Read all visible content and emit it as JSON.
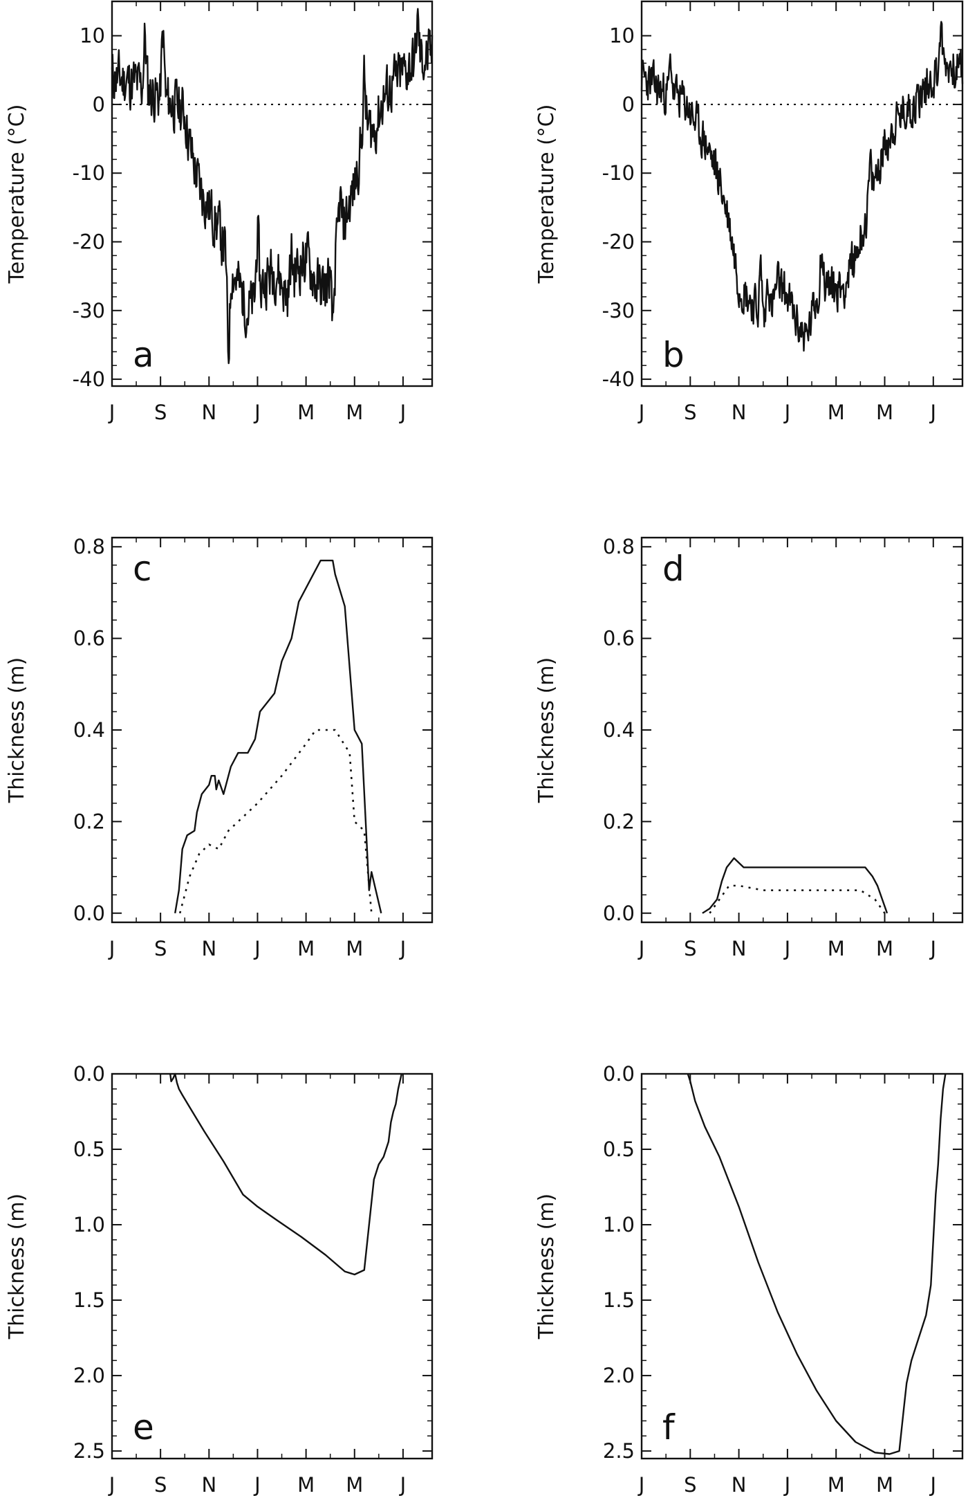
{
  "figure": {
    "panels": [
      "a",
      "b",
      "c",
      "d",
      "e",
      "f"
    ]
  },
  "chart_data": [
    {
      "id": "a",
      "panel_label": "a",
      "type": "line",
      "ylabel": "Temperature (°C)",
      "xlabel": "",
      "month_ticks": [
        "J",
        "S",
        "N",
        "J",
        "M",
        "M",
        "J"
      ],
      "ylim": [
        -41,
        15
      ],
      "y_ticks": [
        10,
        0,
        -10,
        -20,
        -30,
        -40
      ],
      "y_tick_labels": [
        "10",
        "0",
        "-10",
        "-20",
        "-30",
        "-40"
      ],
      "zero_line": true,
      "series": [
        {
          "style": "solid",
          "noise": 3.6,
          "seed": 11,
          "spikes": [
            [
              0.68,
              8
            ],
            [
              1.05,
              10
            ],
            [
              2.4,
              -14
            ],
            [
              3.0,
              10
            ],
            [
              3.7,
              4
            ],
            [
              4.55,
              -10
            ],
            [
              4.7,
              6
            ],
            [
              5.2,
              7
            ],
            [
              6.3,
              6
            ]
          ],
          "x": [
            0,
            0.5,
            1.0,
            1.3,
            1.5,
            1.6,
            1.8,
            2.0,
            2.2,
            2.4,
            2.6,
            2.8,
            3.0,
            3.2,
            3.4,
            3.6,
            3.8,
            4.0,
            4.2,
            4.4,
            4.6,
            4.8,
            5.0,
            5.2,
            5.4,
            5.6,
            5.8,
            6.2,
            6.6
          ],
          "y": [
            4,
            3,
            1,
            0,
            -1,
            -6,
            -12,
            -15,
            -18,
            -23,
            -26,
            -30,
            -28,
            -25,
            -24,
            -28,
            -24,
            -22,
            -26,
            -27,
            -22,
            -17,
            -12,
            -3,
            -4,
            1,
            3,
            6,
            7
          ]
        }
      ]
    },
    {
      "id": "b",
      "panel_label": "b",
      "type": "line",
      "ylabel": "Temperature (°C)",
      "xlabel": "",
      "month_ticks": [
        "J",
        "S",
        "N",
        "J",
        "M",
        "M",
        "J"
      ],
      "ylim": [
        -41,
        15
      ],
      "y_ticks": [
        10,
        0,
        -10,
        -20,
        -30,
        -40
      ],
      "y_tick_labels": [
        "10",
        "0",
        "-10",
        "-20",
        "-30",
        "-40"
      ],
      "zero_line": true,
      "series": [
        {
          "style": "solid",
          "noise": 2.8,
          "seed": 23,
          "spikes": [
            [
              0.6,
              5
            ],
            [
              2.45,
              7
            ],
            [
              2.6,
              8
            ],
            [
              3.7,
              7
            ],
            [
              4.7,
              5
            ],
            [
              6.15,
              6
            ]
          ],
          "x": [
            0,
            0.4,
            0.8,
            1.0,
            1.2,
            1.4,
            1.6,
            1.8,
            2.0,
            2.2,
            2.4,
            2.6,
            2.8,
            3.0,
            3.2,
            3.4,
            3.6,
            3.8,
            4.0,
            4.2,
            4.4,
            4.6,
            4.8,
            5.0,
            5.2,
            5.4,
            5.6,
            5.8,
            6.2,
            6.6
          ],
          "y": [
            4,
            2,
            1,
            -1,
            -4,
            -7,
            -11,
            -17,
            -26,
            -28,
            -30,
            -32,
            -26,
            -28,
            -32,
            -34,
            -28,
            -26,
            -27,
            -26,
            -22,
            -17,
            -11,
            -6,
            -3,
            -1,
            0,
            2,
            6,
            5
          ]
        }
      ]
    },
    {
      "id": "c",
      "panel_label": "c",
      "type": "line",
      "ylabel": "Thickness (m)",
      "xlabel": "",
      "month_ticks": [
        "J",
        "S",
        "N",
        "J",
        "M",
        "M",
        "J"
      ],
      "ylim": [
        -0.02,
        0.82
      ],
      "y_ticks": [
        0.0,
        0.2,
        0.4,
        0.6,
        0.8
      ],
      "y_tick_labels": [
        "0.0",
        "0.2",
        "0.4",
        "0.6",
        "0.8"
      ],
      "series": [
        {
          "style": "solid",
          "x": [
            1.3,
            1.38,
            1.45,
            1.55,
            1.7,
            1.75,
            1.85,
            2.0,
            2.05,
            2.12,
            2.15,
            2.2,
            2.3,
            2.45,
            2.6,
            2.8,
            2.95,
            3.05,
            3.2,
            3.35,
            3.5,
            3.7,
            3.85,
            4.1,
            4.3,
            4.55,
            4.6,
            4.8,
            5.0,
            5.05,
            5.15,
            5.3,
            5.35,
            5.55
          ],
          "y": [
            0.0,
            0.05,
            0.14,
            0.17,
            0.18,
            0.22,
            0.26,
            0.28,
            0.3,
            0.3,
            0.27,
            0.29,
            0.26,
            0.32,
            0.35,
            0.35,
            0.38,
            0.44,
            0.46,
            0.48,
            0.55,
            0.6,
            0.68,
            0.73,
            0.77,
            0.77,
            0.74,
            0.67,
            0.4,
            0.39,
            0.37,
            0.05,
            0.09,
            0.0
          ]
        },
        {
          "style": "dotted",
          "x": [
            1.4,
            1.6,
            1.8,
            2.0,
            2.2,
            2.4,
            2.6,
            3.0,
            3.5,
            4.0,
            4.2,
            4.6,
            4.9,
            5.0,
            5.2,
            5.35
          ],
          "y": [
            0.0,
            0.08,
            0.13,
            0.15,
            0.14,
            0.18,
            0.2,
            0.24,
            0.3,
            0.37,
            0.4,
            0.4,
            0.35,
            0.2,
            0.18,
            0.0
          ]
        }
      ]
    },
    {
      "id": "d",
      "panel_label": "d",
      "type": "line",
      "ylabel": "Thickness (m)",
      "xlabel": "",
      "month_ticks": [
        "J",
        "S",
        "N",
        "J",
        "M",
        "M",
        "J"
      ],
      "ylim": [
        -0.02,
        0.82
      ],
      "y_ticks": [
        0.0,
        0.2,
        0.4,
        0.6,
        0.8
      ],
      "y_tick_labels": [
        "0.0",
        "0.2",
        "0.4",
        "0.6",
        "0.8"
      ],
      "series": [
        {
          "style": "solid",
          "x": [
            1.25,
            1.4,
            1.55,
            1.65,
            1.75,
            1.9,
            2.1,
            2.5,
            3.0,
            3.5,
            4.0,
            4.4,
            4.6,
            4.75,
            4.85,
            4.95,
            5.05
          ],
          "y": [
            0.0,
            0.01,
            0.03,
            0.07,
            0.1,
            0.12,
            0.1,
            0.1,
            0.1,
            0.1,
            0.1,
            0.1,
            0.1,
            0.08,
            0.06,
            0.03,
            0.0
          ]
        },
        {
          "style": "dotted",
          "x": [
            1.4,
            1.6,
            1.8,
            2.0,
            2.5,
            3.0,
            4.0,
            4.5,
            4.8,
            5.0
          ],
          "y": [
            0.0,
            0.03,
            0.06,
            0.06,
            0.05,
            0.05,
            0.05,
            0.05,
            0.03,
            0.0
          ]
        }
      ]
    },
    {
      "id": "e",
      "panel_label": "e",
      "type": "line",
      "ylabel": "Thickness (m)",
      "xlabel": "",
      "month_ticks": [
        "J",
        "S",
        "N",
        "J",
        "M",
        "M",
        "J"
      ],
      "ylim": [
        0,
        2.55
      ],
      "y_reversed": true,
      "y_ticks": [
        0.0,
        0.5,
        1.0,
        1.5,
        2.0,
        2.5
      ],
      "y_tick_labels": [
        "0.0",
        "0.5",
        "1.0",
        "1.5",
        "2.0",
        "2.5"
      ],
      "series": [
        {
          "style": "solid",
          "x": [
            1.2,
            1.22,
            1.26,
            1.3,
            1.34,
            1.38,
            1.45,
            1.6,
            1.9,
            2.3,
            2.7,
            3.0,
            3.4,
            3.9,
            4.4,
            4.8,
            5.0,
            5.2,
            5.4,
            5.5,
            5.6,
            5.7,
            5.75,
            5.8,
            5.85,
            5.9,
            5.97
          ],
          "y": [
            0.0,
            0.05,
            0.03,
            0.0,
            0.06,
            0.1,
            0.14,
            0.22,
            0.38,
            0.58,
            0.8,
            0.88,
            0.97,
            1.08,
            1.2,
            1.31,
            1.33,
            1.3,
            0.7,
            0.6,
            0.55,
            0.45,
            0.32,
            0.25,
            0.2,
            0.1,
            0.0
          ]
        }
      ]
    },
    {
      "id": "f",
      "panel_label": "f",
      "type": "line",
      "ylabel": "Thickness (m)",
      "xlabel": "",
      "month_ticks": [
        "J",
        "S",
        "N",
        "J",
        "M",
        "M",
        "J"
      ],
      "ylim": [
        0,
        2.55
      ],
      "y_reversed": true,
      "y_ticks": [
        0.0,
        0.5,
        1.0,
        1.5,
        2.0,
        2.5
      ],
      "y_tick_labels": [
        "0.0",
        "0.5",
        "1.0",
        "1.5",
        "2.0",
        "2.5"
      ],
      "series": [
        {
          "style": "solid",
          "x": [
            0.95,
            1.0,
            1.1,
            1.3,
            1.6,
            2.0,
            2.4,
            2.8,
            3.2,
            3.6,
            4.0,
            4.4,
            4.8,
            5.1,
            5.3,
            5.4,
            5.45,
            5.55,
            5.7,
            5.85,
            5.95,
            6.0,
            6.05,
            6.1,
            6.15,
            6.2,
            6.25
          ],
          "y": [
            0.0,
            0.05,
            0.18,
            0.35,
            0.55,
            0.88,
            1.25,
            1.58,
            1.86,
            2.1,
            2.3,
            2.44,
            2.51,
            2.52,
            2.5,
            2.2,
            2.05,
            1.9,
            1.75,
            1.6,
            1.4,
            1.1,
            0.8,
            0.6,
            0.3,
            0.1,
            0.0
          ]
        }
      ]
    }
  ]
}
